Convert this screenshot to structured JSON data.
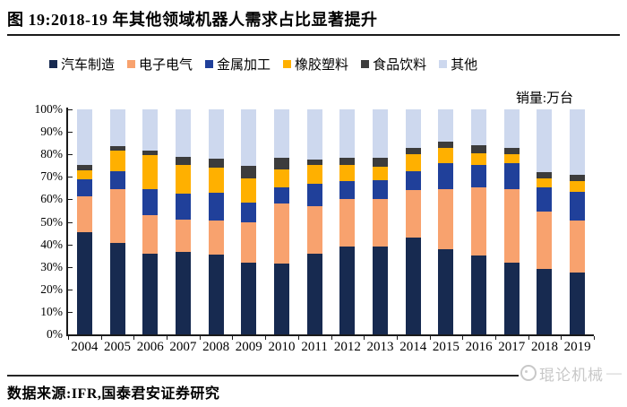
{
  "title": "图 19:2018-19 年其他领域机器人需求占比显著提升",
  "footer": {
    "source": "数据来源:IFR,国泰君安证券研究"
  },
  "watermark": {
    "icon": "circle-face-icon",
    "text": "琨论机械",
    "dash": "—",
    "color": "#C8C8C8"
  },
  "chart_data": {
    "type": "bar",
    "stacked": true,
    "normalized_100pct": true,
    "title": "2018-19 年其他领域机器人需求占比显著提升",
    "unit_label": "销量:万台",
    "legend_position": "top",
    "grid": false,
    "ylim": [
      0,
      100
    ],
    "y_ticks": [
      "0%",
      "10%",
      "20%",
      "30%",
      "40%",
      "50%",
      "60%",
      "70%",
      "80%",
      "90%",
      "100%"
    ],
    "categories": [
      "2004",
      "2005",
      "2006",
      "2007",
      "2008",
      "2009",
      "2010",
      "2011",
      "2012",
      "2013",
      "2014",
      "2015",
      "2016",
      "2017",
      "2018",
      "2019"
    ],
    "series": [
      {
        "name": "汽车制造",
        "color": "#172A50",
        "values": [
          45.5,
          40.5,
          36.0,
          36.5,
          35.5,
          32.0,
          31.5,
          36.0,
          39.0,
          39.0,
          43.0,
          38.0,
          35.0,
          32.0,
          29.0,
          27.5
        ]
      },
      {
        "name": "电子电气",
        "color": "#F8A26E",
        "values": [
          16.0,
          24.0,
          17.0,
          14.5,
          15.0,
          18.0,
          26.5,
          21.0,
          21.0,
          21.0,
          21.0,
          26.5,
          30.5,
          32.5,
          25.5,
          23.0
        ]
      },
      {
        "name": "金属加工",
        "color": "#20409A",
        "values": [
          7.5,
          8.0,
          11.5,
          11.5,
          12.5,
          8.5,
          7.5,
          10.0,
          8.0,
          8.5,
          8.5,
          11.5,
          10.0,
          11.5,
          11.0,
          13.0
        ]
      },
      {
        "name": "橡胶塑料",
        "color": "#FFB000",
        "values": [
          4.0,
          9.0,
          15.0,
          13.0,
          11.0,
          11.0,
          8.0,
          8.5,
          7.5,
          6.0,
          7.5,
          7.0,
          5.0,
          4.0,
          4.0,
          4.5
        ]
      },
      {
        "name": "食品饮料",
        "color": "#3C3C3C",
        "values": [
          2.5,
          2.0,
          2.0,
          3.5,
          4.0,
          5.5,
          5.0,
          2.0,
          3.0,
          4.0,
          3.0,
          2.5,
          3.5,
          3.0,
          2.5,
          3.0
        ]
      },
      {
        "name": "其他",
        "color": "#CDD8EE",
        "values": [
          24.5,
          16.5,
          18.5,
          21.0,
          22.0,
          25.0,
          21.5,
          22.5,
          21.5,
          21.5,
          17.0,
          14.5,
          16.0,
          17.0,
          28.0,
          29.0
        ]
      }
    ]
  }
}
